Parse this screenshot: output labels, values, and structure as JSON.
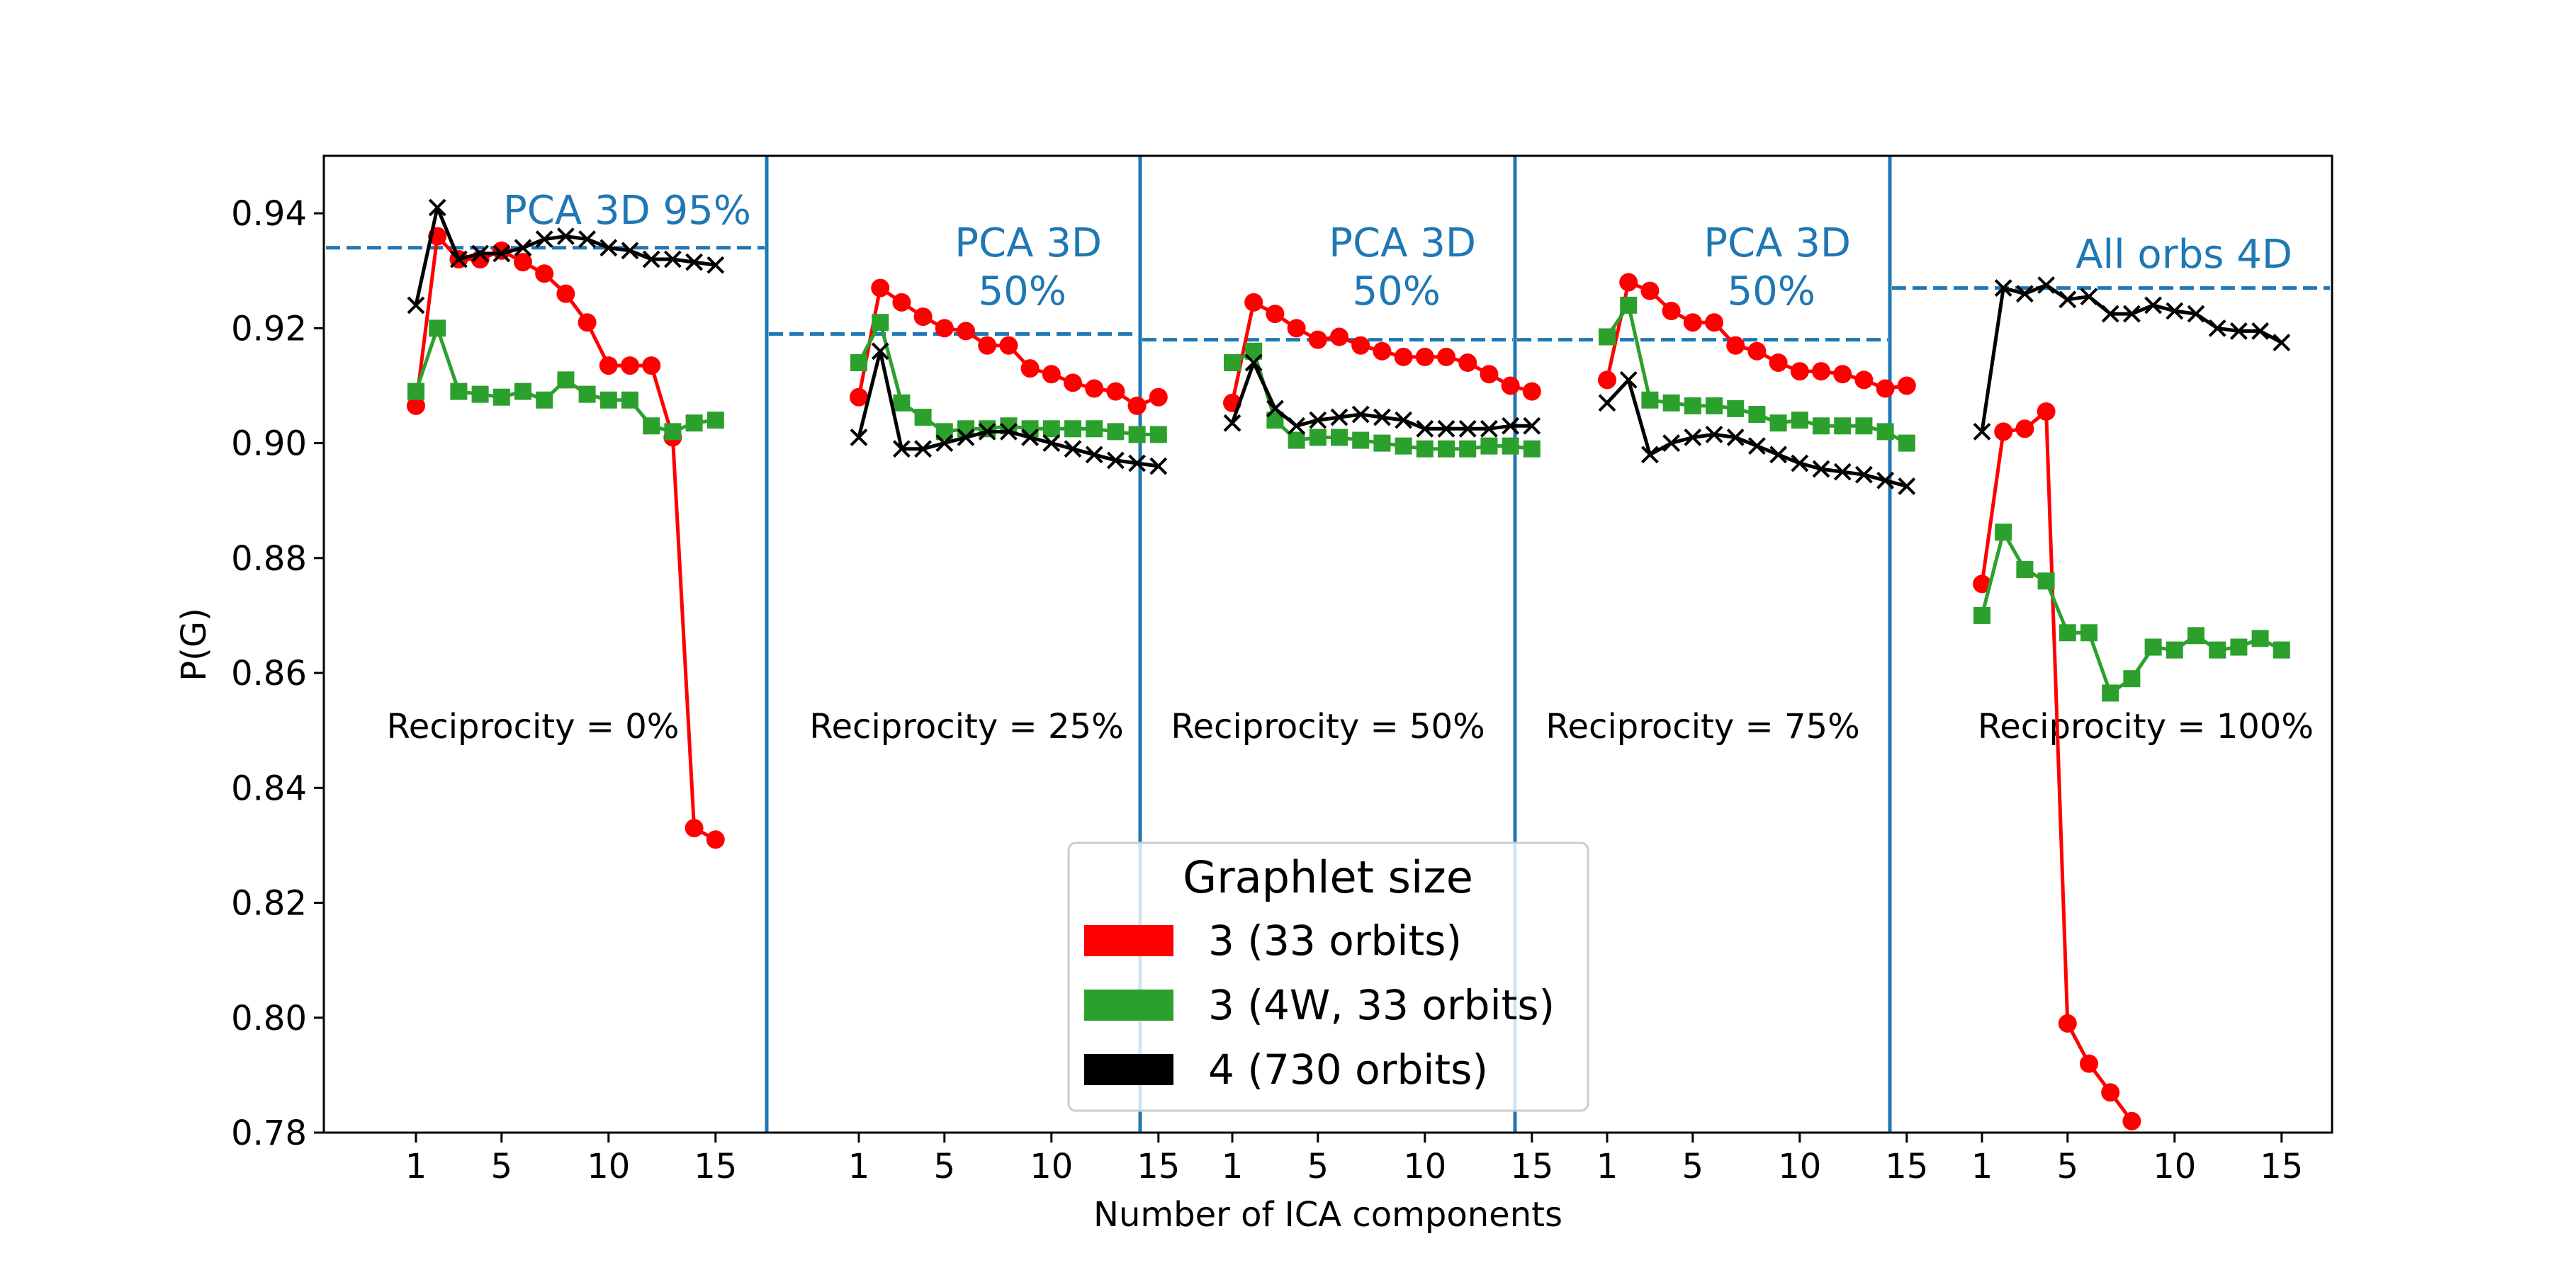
{
  "chart_data": {
    "type": "line",
    "ylabel": "P(G)",
    "xlabel": "Number of ICA components",
    "ylim": [
      0.78,
      0.95
    ],
    "yticks": [
      0.78,
      0.8,
      0.82,
      0.84,
      0.86,
      0.88,
      0.9,
      0.92,
      0.94
    ],
    "xticks": [
      1,
      5,
      10,
      15
    ],
    "legend": {
      "title": "Graphlet size",
      "placement": "bottom-center",
      "entries": [
        {
          "label": "3 (33 orbits)",
          "color": "#ff0000",
          "marker": "circle"
        },
        {
          "label": "3 (4W, 33 orbits)",
          "color": "#2ca02c",
          "marker": "square"
        },
        {
          "label": "4 (730 orbits)",
          "color": "#000000",
          "marker": "x"
        }
      ]
    },
    "panels": [
      {
        "reciprocity_label": "Reciprocity = 0%",
        "reference": {
          "label_lines": [
            "PCA 3D 95%"
          ],
          "value": 0.934
        },
        "series": [
          {
            "name": "3 (33 orbits)",
            "x": [
              1,
              2,
              3,
              4,
              5,
              6,
              7,
              8,
              9,
              10,
              11,
              12,
              13,
              14,
              15
            ],
            "values": [
              0.9065,
              0.936,
              0.932,
              0.932,
              0.9335,
              0.9315,
              0.9295,
              0.926,
              0.921,
              0.9135,
              0.9135,
              0.9135,
              0.901,
              0.833,
              0.831
            ]
          },
          {
            "name": "3 (4W, 33 orbits)",
            "x": [
              1,
              2,
              3,
              4,
              5,
              6,
              7,
              8,
              9,
              10,
              11,
              12,
              13,
              14,
              15
            ],
            "values": [
              0.909,
              0.92,
              0.909,
              0.9085,
              0.908,
              0.909,
              0.9075,
              0.911,
              0.9085,
              0.9075,
              0.9075,
              0.903,
              0.902,
              0.9035,
              0.904
            ]
          },
          {
            "name": "4 (730 orbits)",
            "x": [
              1,
              2,
              3,
              4,
              5,
              6,
              7,
              8,
              9,
              10,
              11,
              12,
              13,
              14,
              15
            ],
            "values": [
              0.924,
              0.941,
              0.932,
              0.933,
              0.933,
              0.934,
              0.9355,
              0.936,
              0.9355,
              0.934,
              0.9335,
              0.932,
              0.932,
              0.9315,
              0.931
            ]
          }
        ]
      },
      {
        "reciprocity_label": "Reciprocity = 25%",
        "reference": {
          "label_lines": [
            "PCA 3D",
            "50%"
          ],
          "value": 0.919
        },
        "series": [
          {
            "name": "3 (33 orbits)",
            "x": [
              1,
              2,
              3,
              4,
              5,
              6,
              7,
              8,
              9,
              10,
              11,
              12,
              13,
              14,
              15
            ],
            "values": [
              0.908,
              0.927,
              0.9245,
              0.922,
              0.92,
              0.9195,
              0.917,
              0.917,
              0.913,
              0.912,
              0.9105,
              0.9095,
              0.909,
              0.9065,
              0.908
            ]
          },
          {
            "name": "3 (4W, 33 orbits)",
            "x": [
              1,
              2,
              3,
              4,
              5,
              6,
              7,
              8,
              9,
              10,
              11,
              12,
              13,
              14,
              15
            ],
            "values": [
              0.914,
              0.921,
              0.907,
              0.9045,
              0.902,
              0.9025,
              0.9025,
              0.903,
              0.9025,
              0.9025,
              0.9025,
              0.9025,
              0.902,
              0.9015,
              0.9015
            ]
          },
          {
            "name": "4 (730 orbits)",
            "x": [
              1,
              2,
              3,
              4,
              5,
              6,
              7,
              8,
              9,
              10,
              11,
              12,
              13,
              14,
              15
            ],
            "values": [
              0.901,
              0.916,
              0.899,
              0.899,
              0.9,
              0.901,
              0.902,
              0.902,
              0.901,
              0.9,
              0.899,
              0.898,
              0.897,
              0.8965,
              0.896
            ]
          }
        ]
      },
      {
        "reciprocity_label": "Reciprocity = 50%",
        "reference": {
          "label_lines": [
            "PCA 3D",
            "50%"
          ],
          "value": 0.918
        },
        "series": [
          {
            "name": "3 (33 orbits)",
            "x": [
              1,
              2,
              3,
              4,
              5,
              6,
              7,
              8,
              9,
              10,
              11,
              12,
              13,
              14,
              15
            ],
            "values": [
              0.907,
              0.9245,
              0.9225,
              0.92,
              0.918,
              0.9185,
              0.917,
              0.916,
              0.915,
              0.915,
              0.915,
              0.914,
              0.912,
              0.91,
              0.909
            ]
          },
          {
            "name": "3 (4W, 33 orbits)",
            "x": [
              1,
              2,
              3,
              4,
              5,
              6,
              7,
              8,
              9,
              10,
              11,
              12,
              13,
              14,
              15
            ],
            "values": [
              0.914,
              0.916,
              0.904,
              0.9005,
              0.901,
              0.901,
              0.9005,
              0.9,
              0.8995,
              0.899,
              0.899,
              0.899,
              0.8995,
              0.8995,
              0.899
            ]
          },
          {
            "name": "4 (730 orbits)",
            "x": [
              1,
              2,
              3,
              4,
              5,
              6,
              7,
              8,
              9,
              10,
              11,
              12,
              13,
              14,
              15
            ],
            "values": [
              0.9035,
              0.914,
              0.906,
              0.903,
              0.904,
              0.9045,
              0.905,
              0.9045,
              0.904,
              0.9025,
              0.9025,
              0.9025,
              0.9025,
              0.903,
              0.903
            ]
          }
        ]
      },
      {
        "reciprocity_label": "Reciprocity = 75%",
        "reference": {
          "label_lines": [
            "PCA 3D",
            "50%"
          ],
          "value": 0.918
        },
        "series": [
          {
            "name": "3 (33 orbits)",
            "x": [
              1,
              2,
              3,
              4,
              5,
              6,
              7,
              8,
              9,
              10,
              11,
              12,
              13,
              14,
              15
            ],
            "values": [
              0.911,
              0.928,
              0.9265,
              0.923,
              0.921,
              0.921,
              0.917,
              0.916,
              0.914,
              0.9125,
              0.9125,
              0.912,
              0.911,
              0.9095,
              0.91
            ]
          },
          {
            "name": "3 (4W, 33 orbits)",
            "x": [
              1,
              2,
              3,
              4,
              5,
              6,
              7,
              8,
              9,
              10,
              11,
              12,
              13,
              14,
              15
            ],
            "values": [
              0.9185,
              0.924,
              0.9075,
              0.907,
              0.9065,
              0.9065,
              0.906,
              0.905,
              0.9035,
              0.904,
              0.903,
              0.903,
              0.903,
              0.902,
              0.9
            ]
          },
          {
            "name": "4 (730 orbits)",
            "x": [
              1,
              2,
              3,
              4,
              5,
              6,
              7,
              8,
              9,
              10,
              11,
              12,
              13,
              14,
              15
            ],
            "values": [
              0.907,
              0.911,
              0.898,
              0.9,
              0.901,
              0.9015,
              0.901,
              0.8995,
              0.898,
              0.8965,
              0.8955,
              0.895,
              0.8945,
              0.8935,
              0.8925
            ]
          }
        ]
      },
      {
        "reciprocity_label": "Reciprocity = 100%",
        "reference": {
          "label_lines": [
            "All orbs 4D"
          ],
          "value": 0.927
        },
        "series": [
          {
            "name": "3 (33 orbits)",
            "x": [
              1,
              2,
              3,
              4,
              5,
              6,
              7,
              8
            ],
            "values": [
              0.8755,
              0.902,
              0.9025,
              0.9055,
              0.799,
              0.792,
              0.787,
              0.782
            ]
          },
          {
            "name": "3 (4W, 33 orbits)",
            "x": [
              1,
              2,
              3,
              4,
              5,
              6,
              7,
              8,
              9,
              10,
              11,
              12,
              13,
              14,
              15
            ],
            "values": [
              0.87,
              0.8845,
              0.878,
              0.876,
              0.867,
              0.867,
              0.8565,
              0.859,
              0.8645,
              0.864,
              0.8665,
              0.864,
              0.8645,
              0.866,
              0.864
            ]
          },
          {
            "name": "4 (730 orbits)",
            "x": [
              1,
              2,
              3,
              4,
              5,
              6,
              7,
              8,
              9,
              10,
              11,
              12,
              13,
              14,
              15
            ],
            "values": [
              0.902,
              0.927,
              0.926,
              0.9275,
              0.925,
              0.9255,
              0.9225,
              0.9225,
              0.924,
              0.923,
              0.9225,
              0.92,
              0.9195,
              0.9195,
              0.9175
            ]
          }
        ]
      }
    ]
  }
}
